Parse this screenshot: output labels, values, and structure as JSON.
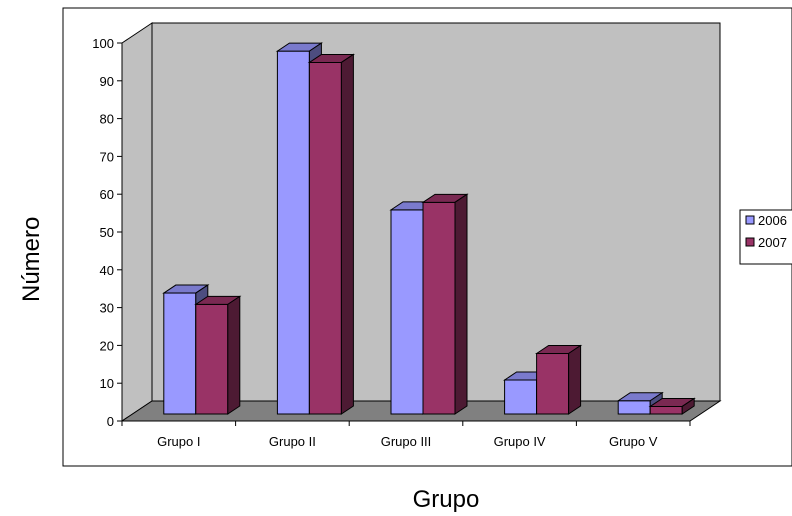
{
  "chart_data": {
    "type": "bar",
    "title": "",
    "xlabel": "Grupo",
    "ylabel": "Número",
    "categories": [
      "Grupo I",
      "Grupo II",
      "Grupo III",
      "Grupo IV",
      "Grupo V"
    ],
    "series": [
      {
        "name": "2006",
        "values": [
          32,
          96,
          54,
          9,
          3.5
        ],
        "color": "#9999ff"
      },
      {
        "name": "2007",
        "values": [
          29,
          93,
          56,
          16,
          2
        ],
        "color": "#993366"
      }
    ],
    "ylim": [
      0,
      100
    ],
    "yticks": [
      0,
      10,
      20,
      30,
      40,
      50,
      60,
      70,
      80,
      90,
      100
    ],
    "grid": false,
    "legend": "right",
    "wall_color": "#c0c0c0",
    "floor_color": "#808080"
  }
}
